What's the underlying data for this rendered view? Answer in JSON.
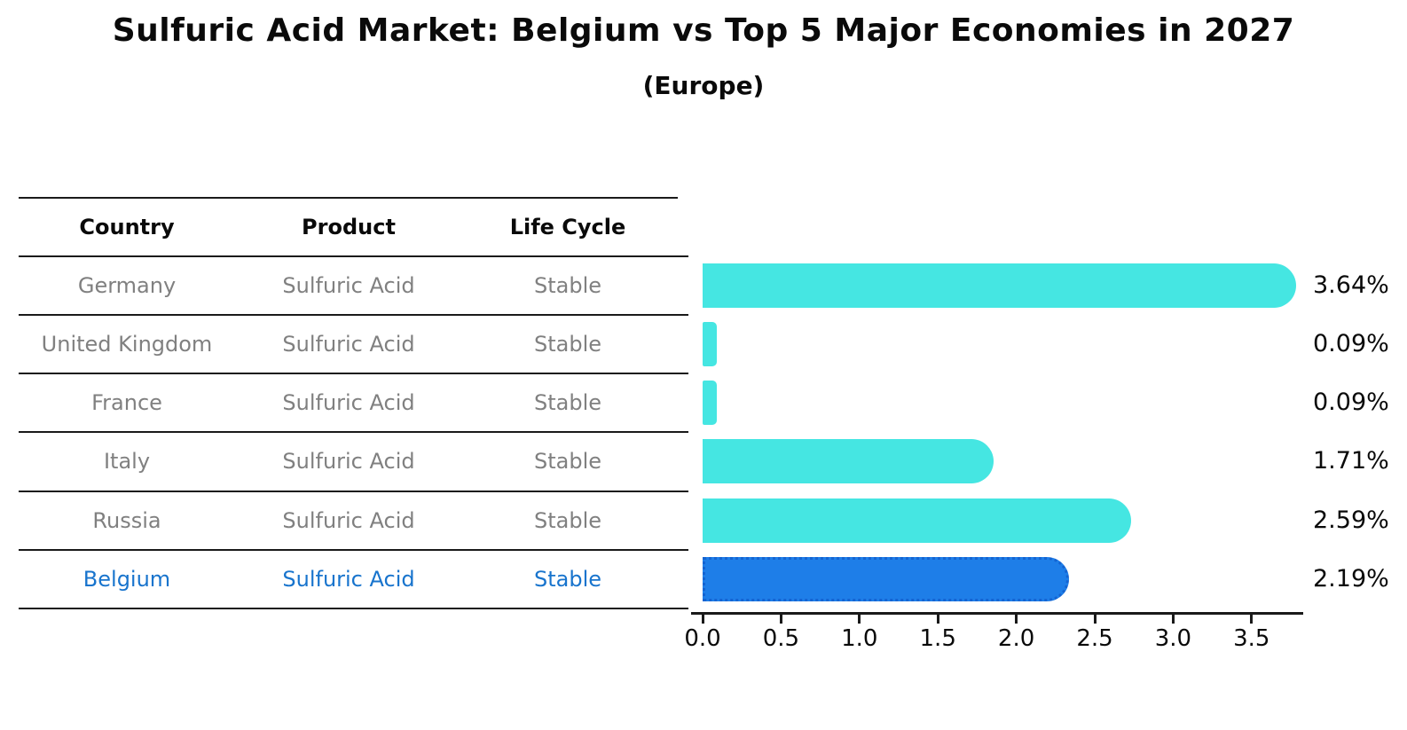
{
  "title": "Sulfuric Acid Market: Belgium vs Top 5 Major Economies in 2027",
  "subtitle": "(Europe)",
  "table": {
    "headers": [
      "Country",
      "Product",
      "Life Cycle"
    ],
    "rows": [
      {
        "country": "Germany",
        "product": "Sulfuric Acid",
        "life_cycle": "Stable"
      },
      {
        "country": "United Kingdom",
        "product": "Sulfuric Acid",
        "life_cycle": "Stable"
      },
      {
        "country": "France",
        "product": "Sulfuric Acid",
        "life_cycle": "Stable"
      },
      {
        "country": "Italy",
        "product": "Sulfuric Acid",
        "life_cycle": "Stable"
      },
      {
        "country": "Russia",
        "product": "Sulfuric Acid",
        "life_cycle": "Stable"
      },
      {
        "country": "Belgium",
        "product": "Sulfuric Acid",
        "life_cycle": "Stable"
      }
    ],
    "highlight_row": "Belgium"
  },
  "chart_data": {
    "type": "bar",
    "orientation": "horizontal",
    "categories": [
      "Germany",
      "United Kingdom",
      "France",
      "Italy",
      "Russia",
      "Belgium"
    ],
    "values": [
      3.64,
      0.09,
      0.09,
      1.71,
      2.59,
      2.19
    ],
    "value_labels": [
      "3.64%",
      "0.09%",
      "0.09%",
      "1.71%",
      "2.59%",
      "2.19%"
    ],
    "x_ticks": [
      "0.0",
      "0.5",
      "1.0",
      "1.5",
      "2.0",
      "2.5",
      "3.0",
      "3.5"
    ],
    "xlim": [
      0,
      3.82
    ],
    "grid": false,
    "legend": "none",
    "highlight_index": 5,
    "colors": {
      "bar": "#45E6E2",
      "highlight_bar": "#1E7EE8",
      "highlight_border": "#1464D2",
      "highlight_text": "#1874CD",
      "table_text": "#808080",
      "header_text": "#0a0a0a",
      "axis": "#1a1a1a"
    }
  }
}
